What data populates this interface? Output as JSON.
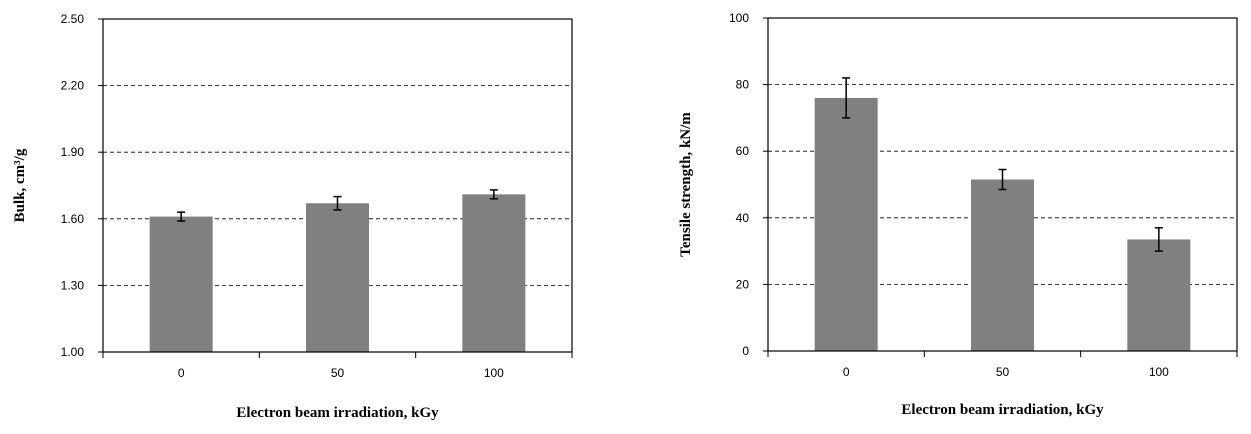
{
  "chart_data": [
    {
      "type": "bar",
      "title": "",
      "xlabel": "Electron beam irradiation, kGy",
      "ylabel": "Bulk, cm³/g",
      "categories": [
        "0",
        "50",
        "100"
      ],
      "values": [
        1.61,
        1.67,
        1.71
      ],
      "errors": [
        0.02,
        0.03,
        0.02
      ],
      "ylim": [
        1.0,
        2.5
      ],
      "yticks": [
        1.0,
        1.3,
        1.6,
        1.9,
        2.2,
        2.5
      ],
      "ytick_labels": [
        "1.00",
        "1.30",
        "1.60",
        "1.90",
        "2.20",
        "2.50"
      ],
      "grid": true,
      "bar_color": "#808080"
    },
    {
      "type": "bar",
      "title": "",
      "xlabel": "Electron beam irradiation, kGy",
      "ylabel": "Tensile strength, kN/m",
      "categories": [
        "0",
        "50",
        "100"
      ],
      "values": [
        76,
        51.5,
        33.5
      ],
      "errors": [
        6,
        3,
        3.5
      ],
      "ylim": [
        0,
        100
      ],
      "yticks": [
        0,
        20,
        40,
        60,
        80,
        100
      ],
      "ytick_labels": [
        "0",
        "20",
        "40",
        "60",
        "80",
        "100"
      ],
      "grid": true,
      "bar_color": "#808080"
    }
  ]
}
